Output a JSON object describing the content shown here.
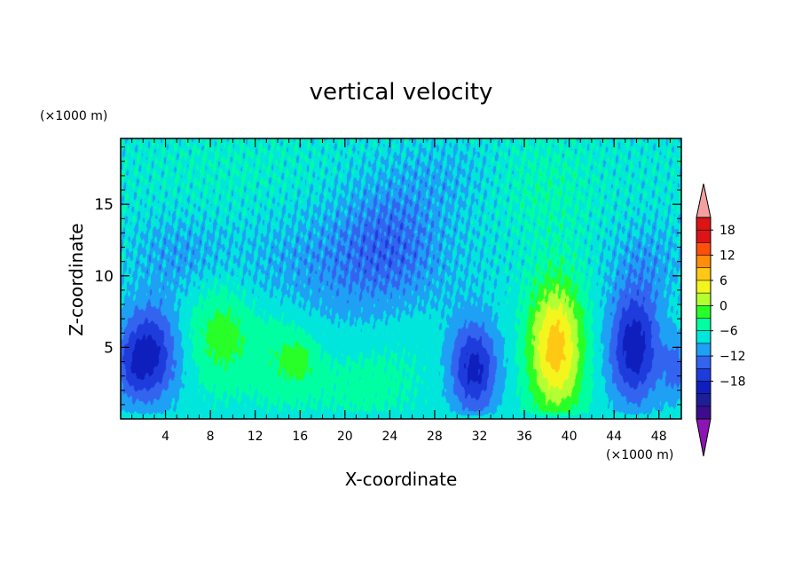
{
  "chart_data": {
    "type": "heatmap",
    "title": "vertical velocity",
    "xlabel": "X-coordinate",
    "ylabel": "Z-coordinate",
    "x_unit": "(×1000 m)",
    "y_unit": "(×1000 m)",
    "xlim": [
      0,
      50
    ],
    "ylim": [
      0,
      19.6
    ],
    "x_ticks": [
      4,
      8,
      12,
      16,
      20,
      24,
      28,
      32,
      36,
      40,
      44,
      48
    ],
    "y_ticks": [
      5,
      10,
      15
    ],
    "features": [
      {
        "x": 2.5,
        "z": 4.5,
        "sx": 1.8,
        "sz": 2.4,
        "value": -12
      },
      {
        "x": 1.0,
        "z": 3.5,
        "sx": 1.0,
        "sz": 1.5,
        "value": -3
      },
      {
        "x": 9.0,
        "z": 6.0,
        "sx": 2.0,
        "sz": 2.5,
        "value": 6
      },
      {
        "x": 14.5,
        "z": 4.5,
        "sx": 2.0,
        "sz": 2.3,
        "value": 4
      },
      {
        "x": 16.0,
        "z": 4.0,
        "sx": 1.0,
        "sz": 1.0,
        "value": 3
      },
      {
        "x": 21.0,
        "z": 2.5,
        "sx": 3.0,
        "sz": 2.0,
        "value": 2
      },
      {
        "x": 25.5,
        "z": 4.5,
        "sx": 2.5,
        "sz": 3.0,
        "value": 1
      },
      {
        "x": 31.5,
        "z": 3.5,
        "sx": 1.5,
        "sz": 2.3,
        "value": -12
      },
      {
        "x": 38.8,
        "z": 5.0,
        "sx": 1.7,
        "sz": 3.3,
        "value": 15
      },
      {
        "x": 45.8,
        "z": 5.0,
        "sx": 1.6,
        "sz": 2.8,
        "value": -13
      },
      {
        "x": 49.5,
        "z": 3.5,
        "sx": 0.8,
        "sz": 1.5,
        "value": -6
      },
      {
        "x": 20.0,
        "z": 10.5,
        "sx": 7.0,
        "sz": 3.0,
        "value": -4
      },
      {
        "x": 24.0,
        "z": 13.0,
        "sx": 3.0,
        "sz": 3.0,
        "value": -4
      },
      {
        "x": 5.0,
        "z": 11.5,
        "sx": 3.0,
        "sz": 2.0,
        "value": -3
      },
      {
        "x": 38.0,
        "z": 16.0,
        "sx": 3.0,
        "sz": 2.5,
        "value": 2
      },
      {
        "x": 10.0,
        "z": 17.0,
        "sx": 5.0,
        "sz": 2.5,
        "value": 1
      },
      {
        "x": 29.0,
        "z": 17.0,
        "sx": 3.0,
        "sz": 2.0,
        "value": -2
      },
      {
        "x": 47.0,
        "z": 11.0,
        "sx": 2.5,
        "sz": 2.0,
        "value": -3
      }
    ],
    "colorbar": {
      "levels": [
        -21,
        -18,
        -15,
        -12,
        -9,
        -6,
        -3,
        0,
        3,
        6,
        9,
        12,
        15,
        18,
        21
      ],
      "colors": [
        "#3c0c8c",
        "#1e1e96",
        "#0f1fbe",
        "#1e3cdc",
        "#3264f0",
        "#1ea0f5",
        "#00e6dc",
        "#00ffa0",
        "#28ff28",
        "#b4ff32",
        "#f5f51e",
        "#ffc814",
        "#ff8c0a",
        "#ff500a",
        "#dc1414",
        "#f5a0a0"
      ],
      "under_color": "#8c14b4",
      "over_color": "#f5a0a0",
      "tick_labels": [
        "18",
        "12",
        "6",
        "0",
        "−6",
        "−12",
        "−18"
      ]
    }
  }
}
